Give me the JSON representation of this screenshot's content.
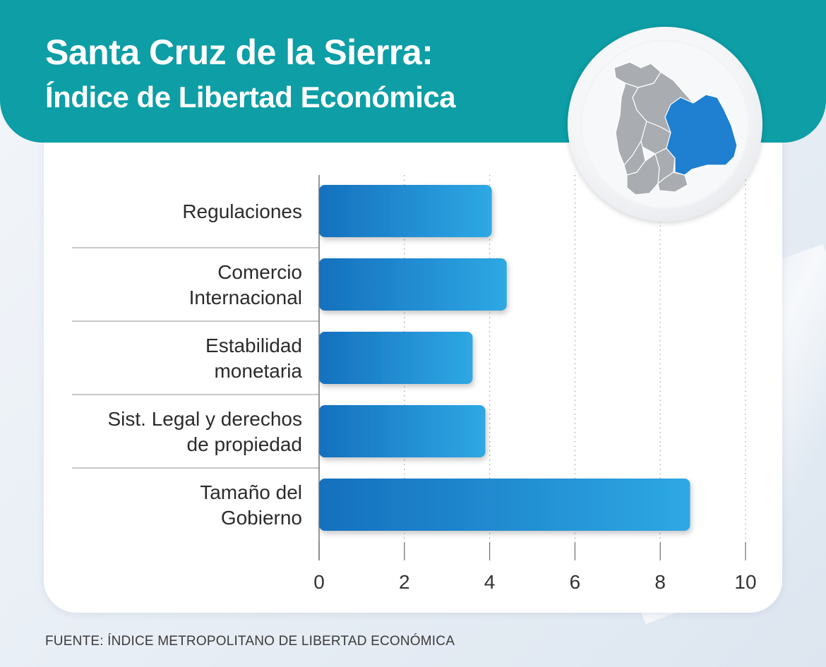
{
  "header": {
    "title_line1": "Santa Cruz de la Sierra:",
    "title_line2": "Índice de Libertad Económica"
  },
  "map": {
    "highlight_region": "Santa Cruz",
    "highlight_color": "#1f7fd0",
    "base_color": "#a9acb0"
  },
  "chart_data": {
    "type": "bar",
    "orientation": "horizontal",
    "categories": [
      [
        "Regulaciones"
      ],
      [
        "Comercio",
        "Internacional"
      ],
      [
        "Estabilidad",
        "monetaria"
      ],
      [
        "Sist. Legal y derechos",
        "de propiedad"
      ],
      [
        "Tamaño del",
        "Gobierno"
      ]
    ],
    "values": [
      4.05,
      4.4,
      3.6,
      3.9,
      8.7
    ],
    "xlim": [
      0,
      10
    ],
    "xticks": [
      "0",
      "2",
      "4",
      "6",
      "8",
      "10"
    ],
    "grid": "vertical dotted",
    "bar_color_start": "#1570be",
    "bar_color_end": "#2ea8e4"
  },
  "footer": {
    "source": "FUENTE: ÍNDICE METROPOLITANO DE LIBERTAD ECONÓMICA"
  }
}
